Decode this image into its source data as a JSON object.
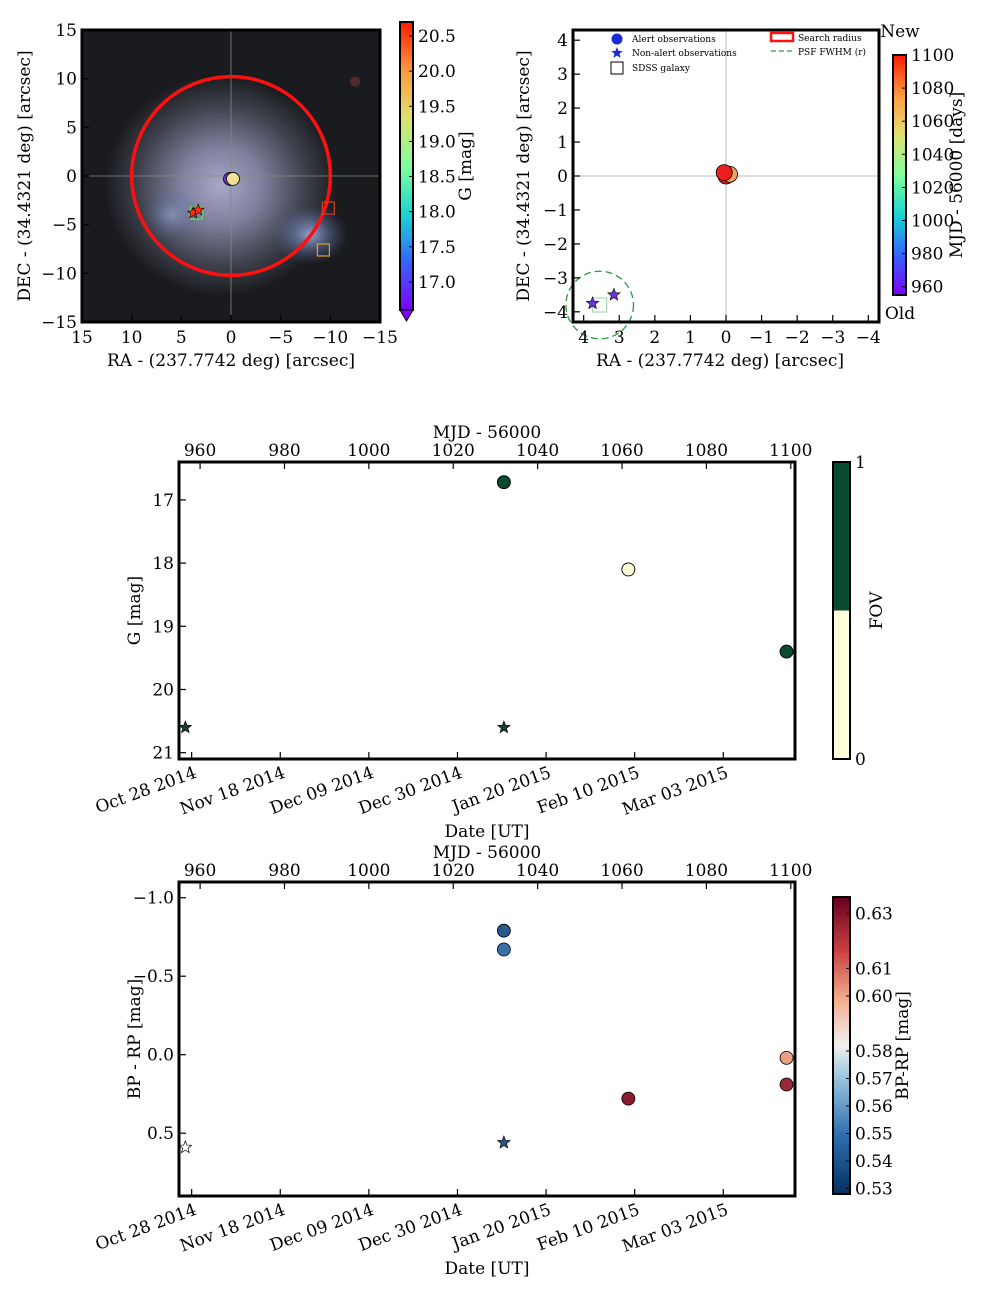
{
  "chart_data": [
    {
      "type": "scatter",
      "panel": "sky-image",
      "xlabel": "RA - (237.7742 deg) [arcsec]",
      "ylabel": "DEC - (34.4321 deg) [arcsec]",
      "xlim": [
        15,
        -15
      ],
      "ylim": [
        -15,
        15
      ],
      "xticks": [
        15,
        10,
        5,
        0,
        -5,
        -10,
        -15
      ],
      "yticks": [
        15,
        10,
        5,
        0,
        -5,
        -10,
        -15
      ],
      "background": "SDSS color cutout (galaxy)",
      "search_radius_arcsec": 10,
      "colorbar": {
        "label": "G [mag]",
        "range": [
          16.6,
          20.7
        ],
        "ticks": [
          17.0,
          17.5,
          18.0,
          18.5,
          19.0,
          19.5,
          20.0,
          20.5
        ],
        "colormap": "rainbow"
      },
      "alert_points": [
        {
          "ra": 0.1,
          "dec": -0.3,
          "g": 16.75,
          "color": "#6a3bd1"
        },
        {
          "ra": -0.2,
          "dec": -0.3,
          "g": 19.4,
          "color": "#f0e090"
        }
      ],
      "nonalert_points": [
        {
          "ra": 3.8,
          "dec": -3.8,
          "g": 20.6,
          "color": "#ff2a10"
        },
        {
          "ra": 3.3,
          "dec": -3.5,
          "g": 20.6,
          "color": "#ff2a10"
        }
      ],
      "sdss_galaxies": [
        {
          "ra": 3.5,
          "dec": -3.8,
          "color": "#5fcf6a"
        },
        {
          "ra": -9.8,
          "dec": -3.3,
          "color": "#d04020"
        },
        {
          "ra": -9.3,
          "dec": -7.6,
          "color": "#e0a020"
        }
      ]
    },
    {
      "type": "scatter",
      "panel": "position-zoom",
      "xlabel": "RA - (237.7742 deg) [arcsec]",
      "ylabel": "DEC - (34.4321 deg) [arcsec]",
      "xlim": [
        4.3,
        -4.3
      ],
      "ylim": [
        -4.3,
        4.3
      ],
      "xticks": [
        4,
        3,
        2,
        1,
        0,
        -1,
        -2,
        -3,
        -4
      ],
      "yticks": [
        4,
        3,
        2,
        1,
        0,
        -1,
        -2,
        -3,
        -4
      ],
      "legend": {
        "position": "top",
        "entries": [
          "Alert observations",
          "Non-alert observations",
          "SDSS galaxy",
          "Search radius",
          "PSF FWHM (r)"
        ]
      },
      "colorbar": {
        "label": "MJD - 56000 [days]",
        "range": [
          955,
          1100
        ],
        "ticks": [
          960,
          980,
          1000,
          1020,
          1040,
          1060,
          1080,
          1100
        ],
        "top_label": "New",
        "bottom_label": "Old",
        "colormap": "rainbow"
      },
      "alert_points": [
        {
          "ra": 0.0,
          "dec": 0.0,
          "color": "#e82020"
        },
        {
          "ra": -0.1,
          "dec": 0.05,
          "color": "#f0a060"
        },
        {
          "ra": 0.05,
          "dec": 0.1,
          "color": "#ee1e1e"
        }
      ],
      "nonalert_points": [
        {
          "ra": 3.75,
          "dec": -3.75,
          "color": "#6633dd"
        },
        {
          "ra": 3.15,
          "dec": -3.5,
          "color": "#6633dd"
        }
      ],
      "sdss_galaxies": [
        {
          "ra": 3.55,
          "dec": -3.8
        }
      ],
      "psf_fwhm_circle": {
        "ra": 3.55,
        "dec": -3.8,
        "radius": 0.95
      }
    },
    {
      "type": "scatter",
      "panel": "g-lightcurve",
      "xlabel": "Date [UT]",
      "x2label": "MJD - 56000",
      "ylabel": "G [mag]",
      "xlim": [
        955,
        1101
      ],
      "ylim": [
        21.1,
        16.4
      ],
      "xticks_top": [
        960,
        980,
        1000,
        1020,
        1040,
        1060,
        1080,
        1100
      ],
      "xticks_date_labels": [
        "Oct 28 2014",
        "Nov 18 2014",
        "Dec 09 2014",
        "Dec 30 2014",
        "Jan 20 2015",
        "Feb 10 2015",
        "Mar 03 2015"
      ],
      "xticks_date_mjd": [
        958,
        979,
        1000,
        1021,
        1042,
        1063,
        1084
      ],
      "yticks": [
        17,
        18,
        19,
        20,
        21
      ],
      "colorbar": {
        "label": "FOV",
        "ticks": [
          0,
          1
        ],
        "colors": [
          "#ffffd9",
          "#0b4a30"
        ]
      },
      "alert_points": [
        {
          "mjd": 1032,
          "g": 16.72,
          "fov": 1
        },
        {
          "mjd": 1061.5,
          "g": 18.1,
          "fov": 0
        },
        {
          "mjd": 1099,
          "g": 19.4,
          "fov": 1
        }
      ],
      "nonalert_points": [
        {
          "mjd": 956.5,
          "g": 20.6
        },
        {
          "mjd": 1032,
          "g": 20.6
        }
      ]
    },
    {
      "type": "scatter",
      "panel": "bp-rp-lightcurve",
      "xlabel": "Date [UT]",
      "x2label": "MJD - 56000",
      "ylabel": "BP - RP [mag]",
      "xlim": [
        955,
        1101
      ],
      "ylim": [
        0.9,
        -1.1
      ],
      "xticks_top": [
        960,
        980,
        1000,
        1020,
        1040,
        1060,
        1080,
        1100
      ],
      "xticks_date_labels": [
        "Oct 28 2014",
        "Nov 18 2014",
        "Dec 09 2014",
        "Dec 30 2014",
        "Jan 20 2015",
        "Feb 10 2015",
        "Mar 03 2015"
      ],
      "xticks_date_mjd": [
        958,
        979,
        1000,
        1021,
        1042,
        1063,
        1084
      ],
      "yticks": [
        -1.0,
        -0.5,
        0.0,
        0.5
      ],
      "ytick_labels": [
        "−1.0",
        "−0.5",
        "0.0",
        "0.5"
      ],
      "colorbar": {
        "label": "BP-RP [mag]",
        "range": [
          0.528,
          0.636
        ],
        "ticks": [
          0.53,
          0.54,
          0.55,
          0.56,
          0.57,
          0.58,
          0.6,
          0.61,
          0.63
        ],
        "colormap": "RdBu_r"
      },
      "alert_points": [
        {
          "mjd": 1032,
          "bp_rp": -0.79,
          "color": "#2a5a8c"
        },
        {
          "mjd": 1032,
          "bp_rp": -0.67,
          "color": "#3a70a8"
        },
        {
          "mjd": 1061.5,
          "bp_rp": 0.28,
          "color": "#8a1a30"
        },
        {
          "mjd": 1099,
          "bp_rp": 0.02,
          "color": "#e8a080"
        },
        {
          "mjd": 1099,
          "bp_rp": 0.19,
          "color": "#9a2a38"
        }
      ],
      "nonalert_points": [
        {
          "mjd": 956.5,
          "bp_rp": 0.59,
          "color": "#ffffff"
        },
        {
          "mjd": 1032,
          "bp_rp": 0.56,
          "color": "#2a5a8c"
        }
      ]
    }
  ]
}
